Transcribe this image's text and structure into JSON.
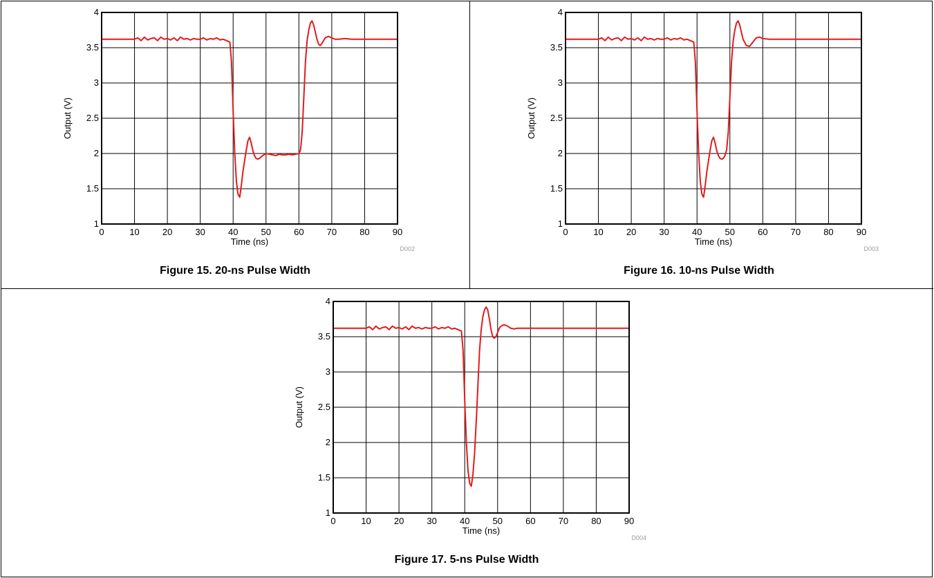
{
  "colors": {
    "trace": "#e31a1c",
    "grid": "#000000",
    "code": "#9a9a9a"
  },
  "chart_data": [
    {
      "type": "line",
      "caption": "Figure 15. 20-ns Pulse Width",
      "code": "D002",
      "xlabel": "Time (ns)",
      "ylabel": "Output (V)",
      "xlim": [
        0,
        90
      ],
      "ylim": [
        1,
        4
      ],
      "xticks": [
        "0",
        "10",
        "20",
        "30",
        "40",
        "50",
        "60",
        "70",
        "80",
        "90"
      ],
      "yticks": [
        "1",
        "1.5",
        "2",
        "2.5",
        "3",
        "3.5",
        "4"
      ],
      "grid": true,
      "series": [
        {
          "x": [
            0,
            10,
            11,
            12,
            13,
            14,
            15,
            16,
            17,
            18,
            19,
            20,
            21,
            22,
            23,
            24,
            25,
            26,
            27,
            28,
            29,
            30,
            31,
            32,
            33,
            34,
            35,
            36,
            37,
            38,
            39,
            39.5,
            40,
            40.5,
            41,
            41.5,
            42,
            42.5,
            43,
            43.5,
            44,
            44.5,
            45,
            45.5,
            46,
            46.5,
            47,
            47.5,
            48,
            49,
            50,
            51,
            52,
            53,
            54,
            55,
            56,
            57,
            58,
            59,
            60,
            60.5,
            61,
            61.5,
            62,
            62.5,
            63,
            63.5,
            64,
            64.5,
            65,
            65.5,
            66,
            66.5,
            67,
            67.5,
            68,
            69,
            70,
            71,
            72,
            74,
            76,
            80,
            85,
            90
          ],
          "y": [
            3.62,
            3.62,
            3.64,
            3.6,
            3.65,
            3.61,
            3.63,
            3.64,
            3.6,
            3.65,
            3.62,
            3.63,
            3.61,
            3.64,
            3.6,
            3.65,
            3.62,
            3.63,
            3.61,
            3.63,
            3.62,
            3.62,
            3.64,
            3.61,
            3.63,
            3.62,
            3.64,
            3.61,
            3.62,
            3.6,
            3.58,
            3.3,
            2.6,
            2.0,
            1.6,
            1.42,
            1.38,
            1.55,
            1.75,
            1.9,
            2.05,
            2.18,
            2.23,
            2.15,
            2.04,
            1.97,
            1.93,
            1.92,
            1.93,
            1.97,
            2.0,
            1.99,
            1.98,
            1.97,
            1.99,
            1.98,
            1.98,
            1.99,
            1.98,
            1.99,
            2.0,
            2.05,
            2.3,
            2.8,
            3.3,
            3.6,
            3.75,
            3.85,
            3.88,
            3.82,
            3.72,
            3.62,
            3.55,
            3.53,
            3.56,
            3.6,
            3.64,
            3.66,
            3.64,
            3.62,
            3.62,
            3.63,
            3.62,
            3.62,
            3.62,
            3.62
          ]
        }
      ]
    },
    {
      "type": "line",
      "caption": "Figure 16. 10-ns Pulse Width",
      "code": "D003",
      "xlabel": "Time (ns)",
      "ylabel": "Output (V)",
      "xlim": [
        0,
        90
      ],
      "ylim": [
        1,
        4
      ],
      "xticks": [
        "0",
        "10",
        "20",
        "30",
        "40",
        "50",
        "60",
        "70",
        "80",
        "90"
      ],
      "yticks": [
        "1",
        "1.5",
        "2",
        "2.5",
        "3",
        "3.5",
        "4"
      ],
      "grid": true,
      "series": [
        {
          "x": [
            0,
            10,
            11,
            12,
            13,
            14,
            15,
            16,
            17,
            18,
            19,
            20,
            21,
            22,
            23,
            24,
            25,
            26,
            27,
            28,
            29,
            30,
            31,
            32,
            33,
            34,
            35,
            36,
            37,
            38,
            39,
            39.5,
            40,
            40.5,
            41,
            41.5,
            42,
            42.5,
            43,
            43.5,
            44,
            44.5,
            45,
            45.5,
            46,
            46.5,
            47,
            47.5,
            48,
            48.5,
            49,
            49.5,
            50,
            50.5,
            51,
            51.5,
            52,
            52.5,
            53,
            53.5,
            54,
            55,
            56,
            57,
            58,
            59,
            60,
            62,
            65,
            70,
            80,
            90
          ],
          "y": [
            3.62,
            3.62,
            3.64,
            3.6,
            3.65,
            3.61,
            3.63,
            3.64,
            3.6,
            3.65,
            3.62,
            3.63,
            3.61,
            3.64,
            3.6,
            3.65,
            3.62,
            3.63,
            3.61,
            3.63,
            3.62,
            3.62,
            3.64,
            3.61,
            3.63,
            3.62,
            3.64,
            3.61,
            3.62,
            3.6,
            3.58,
            3.3,
            2.6,
            2.0,
            1.6,
            1.42,
            1.38,
            1.55,
            1.75,
            1.9,
            2.05,
            2.18,
            2.23,
            2.15,
            2.04,
            1.97,
            1.93,
            1.92,
            1.93,
            1.97,
            2.05,
            2.3,
            2.8,
            3.3,
            3.6,
            3.75,
            3.85,
            3.88,
            3.82,
            3.72,
            3.62,
            3.53,
            3.52,
            3.58,
            3.64,
            3.65,
            3.63,
            3.62,
            3.62,
            3.62,
            3.62,
            3.62
          ]
        }
      ]
    },
    {
      "type": "line",
      "caption": "Figure 17. 5-ns Pulse Width",
      "code": "D004",
      "xlabel": "Time (ns)",
      "ylabel": "Output (V)",
      "xlim": [
        0,
        90
      ],
      "ylim": [
        1,
        4
      ],
      "xticks": [
        "0",
        "10",
        "20",
        "30",
        "40",
        "50",
        "60",
        "70",
        "80",
        "90"
      ],
      "yticks": [
        "1",
        "1.5",
        "2",
        "2.5",
        "3",
        "3.5",
        "4"
      ],
      "grid": true,
      "series": [
        {
          "x": [
            0,
            10,
            11,
            12,
            13,
            14,
            15,
            16,
            17,
            18,
            19,
            20,
            21,
            22,
            23,
            24,
            25,
            26,
            27,
            28,
            29,
            30,
            31,
            32,
            33,
            34,
            35,
            36,
            37,
            38,
            39,
            39.5,
            40,
            40.5,
            41,
            41.5,
            42,
            42.5,
            43,
            43.5,
            44,
            44.5,
            45,
            45.5,
            46,
            46.5,
            47,
            47.5,
            48,
            48.5,
            49,
            49.5,
            50,
            50.5,
            51,
            52,
            53,
            54,
            55,
            56,
            58,
            60,
            65,
            70,
            80,
            90
          ],
          "y": [
            3.62,
            3.62,
            3.64,
            3.6,
            3.65,
            3.61,
            3.63,
            3.64,
            3.6,
            3.65,
            3.62,
            3.63,
            3.61,
            3.64,
            3.6,
            3.65,
            3.62,
            3.63,
            3.61,
            3.63,
            3.62,
            3.62,
            3.64,
            3.61,
            3.63,
            3.62,
            3.64,
            3.61,
            3.62,
            3.6,
            3.58,
            3.3,
            2.6,
            2.0,
            1.6,
            1.42,
            1.38,
            1.55,
            1.85,
            2.3,
            2.8,
            3.3,
            3.6,
            3.78,
            3.88,
            3.92,
            3.88,
            3.75,
            3.6,
            3.5,
            3.48,
            3.5,
            3.56,
            3.62,
            3.65,
            3.67,
            3.65,
            3.62,
            3.61,
            3.62,
            3.62,
            3.62,
            3.62,
            3.62,
            3.62,
            3.62
          ]
        }
      ]
    }
  ]
}
